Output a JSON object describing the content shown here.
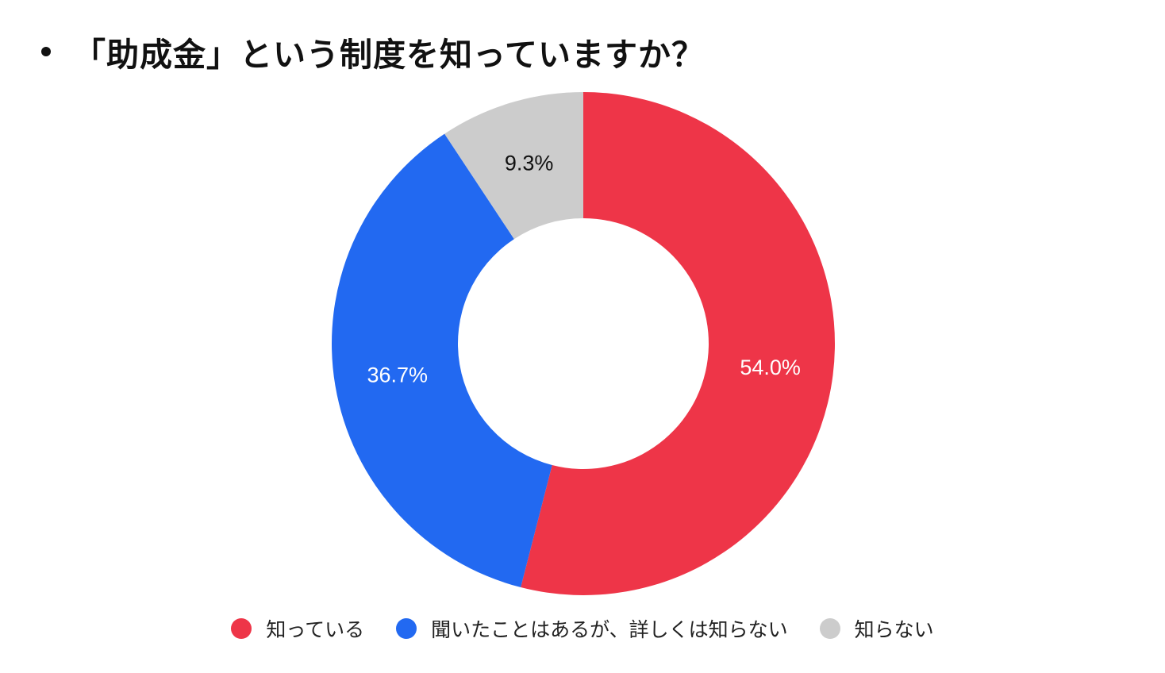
{
  "title": {
    "bullet": "•",
    "text": "「助成金」という制度を知っていますか？"
  },
  "chart_data": {
    "type": "pie",
    "variant": "donut",
    "title": "「助成金」という制度を知っていますか？",
    "slices": [
      {
        "label": "知っている",
        "value": 54.0,
        "display": "54.0%",
        "color": "#EE3548",
        "label_color": "#ffffff"
      },
      {
        "label": "聞いたことはあるが、詳しくは知らない",
        "value": 36.7,
        "display": "36.7%",
        "color": "#2269F1",
        "label_color": "#ffffff"
      },
      {
        "label": "知らない",
        "value": 9.3,
        "display": "9.3%",
        "color": "#CCCCCC",
        "label_color": "#111111"
      }
    ],
    "legend": {
      "placement": "bottom",
      "items": [
        "知っている",
        "聞いたことはあるが、詳しくは知らない",
        "知らない"
      ]
    }
  }
}
